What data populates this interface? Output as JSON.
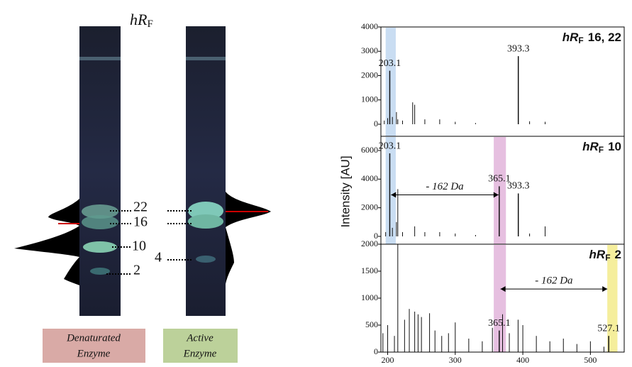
{
  "tlc": {
    "title_main": "hR",
    "title_sub": "F",
    "bands": [
      "22",
      "16",
      "10",
      "2",
      "4"
    ],
    "lanes": [
      [
        "Denaturated",
        "Enzyme"
      ],
      [
        "Active",
        "Enzyme"
      ]
    ]
  },
  "shared_ylabel": "Intensity [AU]",
  "chart_data": [
    {
      "type": "spectrum",
      "title_main": "hR",
      "title_sub": "F",
      "title_rest": "16, 22",
      "xlim": [
        190,
        550
      ],
      "ylim": [
        0,
        4000
      ],
      "yticks": [
        0,
        1000,
        2000,
        3000,
        4000
      ],
      "bands": [
        {
          "from": 197,
          "to": 212,
          "color": "#c9ddf2"
        }
      ],
      "series": [
        {
          "color": "#111111",
          "x": [
            203.1,
            393.3
          ],
          "values": [
            2200,
            2800
          ]
        },
        {
          "color": "#111111",
          "x": [
            195,
            200,
            207,
            213,
            215,
            222,
            237,
            240,
            255,
            277,
            300,
            330,
            410,
            433
          ],
          "values": [
            150,
            250,
            300,
            500,
            200,
            150,
            900,
            800,
            200,
            200,
            100,
            50,
            120,
            100
          ]
        }
      ]
    },
    {
      "type": "spectrum",
      "title_main": "hR",
      "title_sub": "F",
      "title_rest": "10",
      "xlim": [
        190,
        550
      ],
      "ylim": [
        0,
        6000
      ],
      "yticks": [
        0,
        2000,
        4000,
        6000
      ],
      "bands": [
        {
          "from": 197,
          "to": 212,
          "color": "#c9ddf2"
        },
        {
          "from": 357,
          "to": 375,
          "color": "#e6bfe0"
        }
      ],
      "annotations": [
        {
          "text": "- 162 Da",
          "x0": 205,
          "x1": 364,
          "y": 2900
        }
      ],
      "series": [
        {
          "color": "#111111",
          "x": [
            203.1,
            365.1,
            393.3
          ],
          "values": [
            5800,
            3500,
            3000
          ]
        },
        {
          "color": "#111111",
          "x": [
            197,
            207,
            213,
            215,
            222,
            240,
            255,
            277,
            300,
            330,
            410,
            433
          ],
          "values": [
            300,
            600,
            1000,
            3300,
            300,
            700,
            300,
            300,
            200,
            100,
            200,
            700
          ]
        }
      ]
    },
    {
      "type": "spectrum",
      "title_main": "hR",
      "title_sub": "F",
      "title_rest": "2",
      "xlim": [
        190,
        550
      ],
      "ylim": [
        0,
        2000
      ],
      "yticks": [
        0,
        500,
        1000,
        1500,
        2000
      ],
      "xticks": [
        200,
        300,
        400,
        500
      ],
      "bands": [
        {
          "from": 357,
          "to": 375,
          "color": "#e6bfe0"
        },
        {
          "from": 525,
          "to": 540,
          "color": "#f5ee9c"
        }
      ],
      "annotations": [
        {
          "text": "- 162 Da",
          "x0": 367,
          "x1": 525,
          "y": 1170
        }
      ],
      "series": [
        {
          "color": "#111111",
          "x": [
            365.1,
            527.1
          ],
          "values": [
            400,
            300
          ]
        },
        {
          "color": "#111111",
          "x": [
            193,
            200,
            210,
            215,
            225,
            232,
            240,
            245,
            250,
            262,
            270,
            280,
            290,
            300,
            320,
            340,
            355,
            370,
            380,
            393,
            400,
            420,
            440,
            460,
            480,
            500,
            520
          ],
          "values": [
            350,
            500,
            300,
            2000,
            600,
            800,
            750,
            700,
            650,
            720,
            400,
            300,
            350,
            550,
            250,
            200,
            450,
            700,
            350,
            600,
            500,
            300,
            200,
            250,
            150,
            200,
            100
          ]
        }
      ]
    }
  ]
}
